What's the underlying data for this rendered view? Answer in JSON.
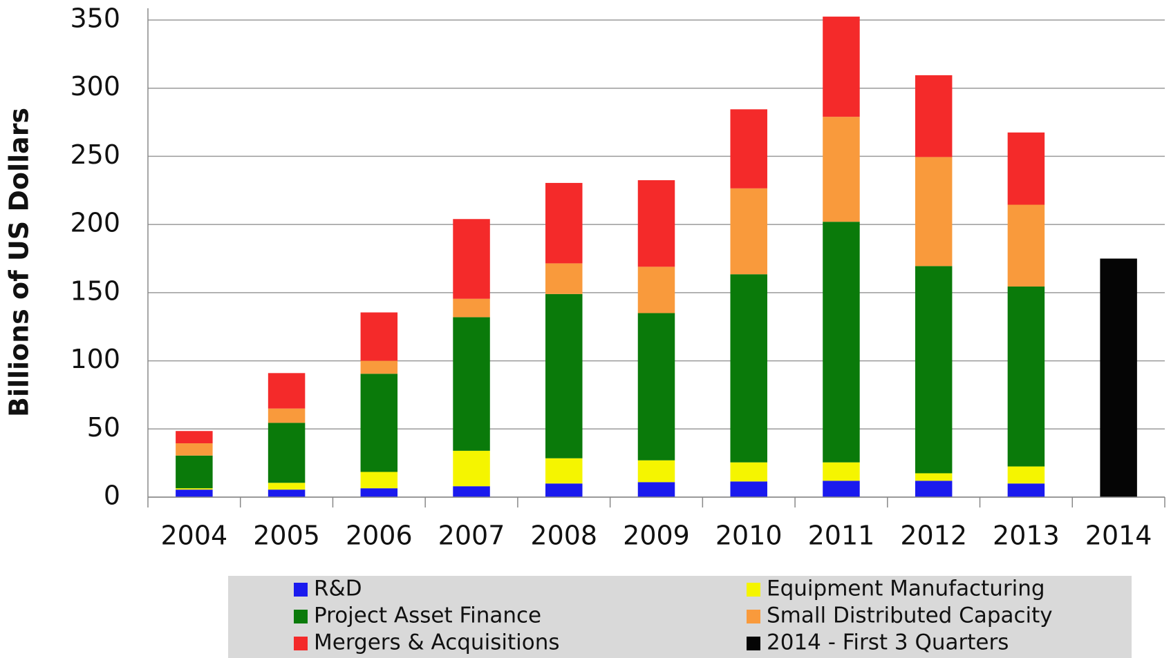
{
  "chart_data": {
    "type": "stacked_bar",
    "y_label": "Billions of US Dollars",
    "categories": [
      "2004",
      "2005",
      "2006",
      "2007",
      "2008",
      "2009",
      "2010",
      "2011",
      "2012",
      "2013",
      "2014"
    ],
    "series": [
      {
        "name": "R&D",
        "color": "#1a1aee",
        "values": [
          5.5,
          5.5,
          6.5,
          8,
          10,
          11,
          11.5,
          12,
          12,
          10,
          null
        ]
      },
      {
        "name": "Equipment Manufacturing",
        "color": "#f5f500",
        "values": [
          1,
          5,
          12,
          26,
          18.5,
          16,
          14,
          13.5,
          5.5,
          12.5,
          null
        ]
      },
      {
        "name": "Project Asset Finance",
        "color": "#0a7a0a",
        "values": [
          24,
          44,
          72,
          98,
          120.5,
          108,
          138,
          176.5,
          152,
          132,
          null
        ]
      },
      {
        "name": "Small Distributed Capacity",
        "color": "#f99a3c",
        "values": [
          9,
          10.5,
          9.5,
          13.5,
          22.5,
          34,
          63,
          77,
          80,
          60,
          null
        ]
      },
      {
        "name": "Mergers & Acquisitions",
        "color": "#f42a2a",
        "values": [
          9,
          26,
          35.5,
          58.5,
          59,
          63.5,
          58,
          73.5,
          60,
          53,
          null
        ]
      },
      {
        "name": "2014 - First 3 Quarters",
        "color": "#050505",
        "values": [
          null,
          null,
          null,
          null,
          null,
          null,
          null,
          null,
          null,
          null,
          175
        ]
      }
    ],
    "ylim": [
      0,
      350
    ],
    "yticks": [
      0,
      50,
      100,
      150,
      200,
      250,
      300,
      350
    ],
    "grid": true
  }
}
